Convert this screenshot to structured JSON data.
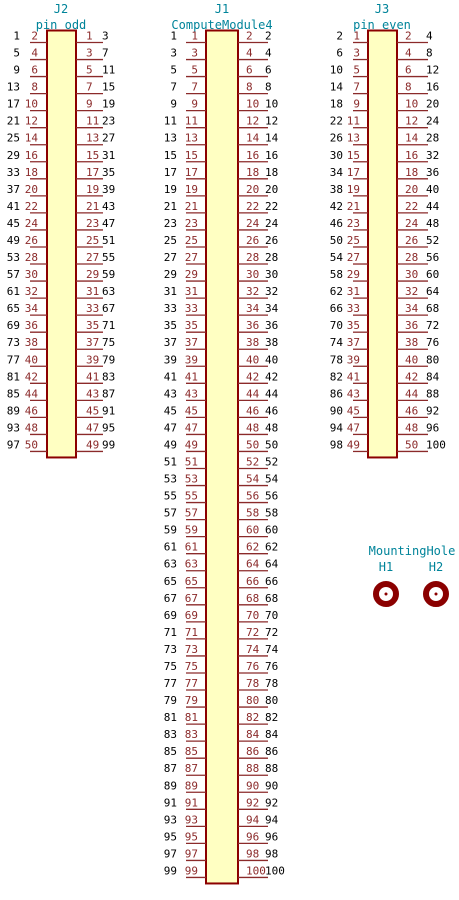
{
  "components": [
    {
      "ref": "J2",
      "value": "pin_odd",
      "rows": 25,
      "left_start": 2,
      "right_start": 1,
      "step": 2,
      "left_nets": [
        1,
        5,
        9,
        13,
        17,
        21,
        25,
        29,
        33,
        37,
        41,
        45,
        49,
        53,
        57,
        61,
        65,
        69,
        73,
        77,
        81,
        85,
        89,
        93,
        97
      ],
      "right_nets": [
        3,
        7,
        11,
        15,
        19,
        23,
        27,
        31,
        35,
        39,
        43,
        47,
        51,
        55,
        59,
        63,
        67,
        71,
        75,
        79,
        83,
        87,
        91,
        95,
        99
      ]
    },
    {
      "ref": "J1",
      "value": "ComputeModule4",
      "rows": 50,
      "left_start": 1,
      "right_start": 2,
      "step": 2,
      "left_nets": [
        1,
        3,
        5,
        7,
        9,
        11,
        13,
        15,
        17,
        19,
        21,
        23,
        25,
        27,
        29,
        31,
        33,
        35,
        37,
        39,
        41,
        43,
        45,
        47,
        49,
        51,
        53,
        55,
        57,
        59,
        61,
        63,
        65,
        67,
        69,
        71,
        73,
        75,
        77,
        79,
        81,
        83,
        85,
        87,
        89,
        91,
        93,
        95,
        97,
        99
      ],
      "right_nets": [
        2,
        4,
        6,
        8,
        10,
        12,
        14,
        16,
        18,
        20,
        22,
        24,
        26,
        28,
        30,
        32,
        34,
        36,
        38,
        40,
        42,
        44,
        46,
        48,
        50,
        52,
        54,
        56,
        58,
        60,
        62,
        64,
        66,
        68,
        70,
        72,
        74,
        76,
        78,
        80,
        82,
        84,
        86,
        88,
        90,
        92,
        94,
        96,
        98,
        100
      ]
    },
    {
      "ref": "J3",
      "value": "pin_even",
      "rows": 25,
      "left_start": 1,
      "right_start": 2,
      "step": 2,
      "left_nets": [
        2,
        6,
        10,
        14,
        18,
        22,
        26,
        30,
        34,
        38,
        42,
        46,
        50,
        54,
        58,
        62,
        66,
        70,
        74,
        78,
        82,
        86,
        90,
        94,
        98
      ],
      "right_nets": [
        4,
        8,
        12,
        16,
        20,
        24,
        28,
        32,
        36,
        40,
        44,
        48,
        52,
        56,
        60,
        64,
        68,
        72,
        76,
        80,
        84,
        88,
        92,
        96,
        100
      ]
    }
  ],
  "mounting": {
    "value": "MountingHole",
    "refs": [
      "H1",
      "H2"
    ],
    "color": "#8b0000"
  },
  "colors": {
    "ref_text": "#00849a",
    "pin_text": "#8b2a2a",
    "body_fill": "#ffffc2",
    "body_stroke": "#8b0000"
  }
}
